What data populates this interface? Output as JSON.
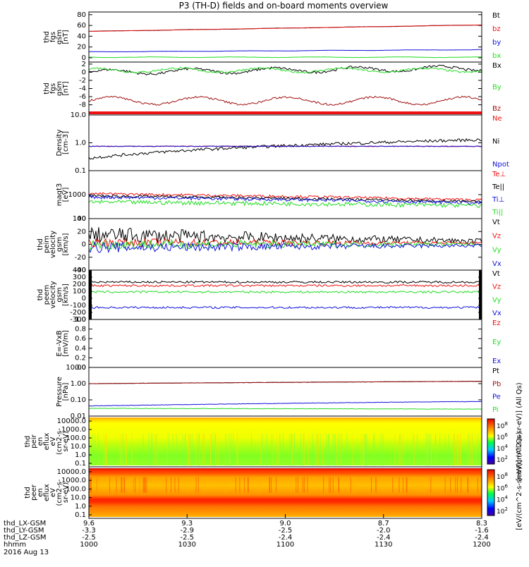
{
  "title": "P3 (TH-D) fields and on-board moments overview",
  "colors": {
    "black": "#000000",
    "red": "#ee1111",
    "green": "#22dd22",
    "blue": "#1111dd",
    "darkred": "#a01010"
  },
  "chart_data": [
    {
      "type": "line",
      "ylabel": [
        "thd",
        "fgs",
        "gsm",
        "[nT]"
      ],
      "yticks": [
        0,
        20,
        40,
        60,
        80
      ],
      "ylim": [
        -8,
        85
      ],
      "series": [
        {
          "name": "Bt",
          "color": "black",
          "from": 49,
          "to": 61
        },
        {
          "name": "bz",
          "color": "red",
          "from": 49,
          "to": 61
        },
        {
          "name": "by",
          "color": "blue",
          "from": 11,
          "to": 15
        },
        {
          "name": "bx",
          "color": "green",
          "from": 1,
          "to": 1
        }
      ]
    },
    {
      "type": "line",
      "ylabel": [
        "thd",
        "fgs",
        "gsm",
        "[nT]"
      ],
      "yticks": [
        2,
        0,
        -2,
        -4,
        -6,
        -8
      ],
      "ylim": [
        -10.5,
        2.5
      ],
      "series": [
        {
          "name": "Bx",
          "color": "black",
          "from": 0,
          "to": 1
        },
        {
          "name": "By",
          "color": "green",
          "from": 0.5,
          "to": 0.5
        },
        {
          "name": "Bz",
          "color": "darkred",
          "from": -7,
          "to": -7
        }
      ]
    },
    {
      "type": "line",
      "log": true,
      "ylabel": [
        "Density",
        "[cm-3]"
      ],
      "yticks": [
        "10.0",
        "1.0",
        "0.1"
      ],
      "ylim": [
        0.1,
        10
      ],
      "series": [
        {
          "name": "Ne",
          "color": "red",
          "from": 0.75,
          "to": 0.75
        },
        {
          "name": "Ni",
          "color": "black",
          "from": 0.28,
          "to": 1.3
        },
        {
          "name": "Npot",
          "color": "blue",
          "from": 0.75,
          "to": 0.75
        }
      ]
    },
    {
      "type": "line",
      "log": true,
      "ylabel": [
        "magt3",
        "[eV]"
      ],
      "yticks": [
        "1000",
        "100"
      ],
      "ylim": [
        100,
        10000
      ],
      "series": [
        {
          "name": "Te⊥",
          "color": "red",
          "from": 1100,
          "to": 600
        },
        {
          "name": "Te||",
          "color": "black",
          "from": 900,
          "to": 500
        },
        {
          "name": "Ti⊥",
          "color": "blue",
          "from": 800,
          "to": 450
        },
        {
          "name": "Ti||",
          "color": "green",
          "from": 500,
          "to": 350
        }
      ]
    },
    {
      "type": "line",
      "ylabel": [
        "thd",
        "peim",
        "velocity",
        "gsm",
        "[km/s]"
      ],
      "yticks": [
        40,
        20,
        0,
        -20,
        -40
      ],
      "ylim": [
        -40,
        40
      ],
      "series": [
        {
          "name": "Vt",
          "color": "black",
          "from": 15,
          "to": 5
        },
        {
          "name": "Vz",
          "color": "red",
          "from": 3,
          "to": 2
        },
        {
          "name": "Vy",
          "color": "green",
          "from": 0,
          "to": 0
        },
        {
          "name": "Vx",
          "color": "blue",
          "from": -5,
          "to": -2
        }
      ]
    },
    {
      "type": "line",
      "ylabel": [
        "thd",
        "peem",
        "velocity",
        "gsm",
        "[km/s]"
      ],
      "yticks": [
        400,
        300,
        200,
        100,
        0,
        -100,
        -200,
        -300
      ],
      "ylim": [
        -300,
        400
      ],
      "series": [
        {
          "name": "Vt",
          "color": "black",
          "from": 230,
          "to": 230
        },
        {
          "name": "Vz",
          "color": "red",
          "from": 180,
          "to": 180
        },
        {
          "name": "Vy",
          "color": "green",
          "from": 90,
          "to": 90
        },
        {
          "name": "Vx",
          "color": "blue",
          "from": -130,
          "to": -130
        }
      ]
    },
    {
      "type": "line",
      "ylabel": [
        "E=-VxB",
        "[mV/m]"
      ],
      "yticks": [
        "1.0",
        "0.8",
        "0.6",
        "0.4",
        "0.2",
        "0.0"
      ],
      "ylim": [
        0,
        1
      ],
      "series": [
        {
          "name": "Ez",
          "color": "red"
        },
        {
          "name": "Ey",
          "color": "green"
        },
        {
          "name": "Ex",
          "color": "blue"
        }
      ]
    },
    {
      "type": "line",
      "log": true,
      "ylabel": [
        "Pressure",
        "[nPa]"
      ],
      "yticks": [
        "10.00",
        "1.00",
        "0.10",
        "0.01"
      ],
      "ylim": [
        0.01,
        10
      ],
      "series": [
        {
          "name": "Pt",
          "color": "black",
          "from": 1.0,
          "to": 1.4
        },
        {
          "name": "Pb",
          "color": "darkred",
          "from": 1.0,
          "to": 1.4
        },
        {
          "name": "Pe",
          "color": "blue",
          "from": 0.042,
          "to": 0.08
        },
        {
          "name": "Pi",
          "color": "green",
          "from": 0.03,
          "to": 0.027
        }
      ]
    },
    {
      "type": "heatmap",
      "ylabel": [
        "thd",
        "peir",
        "en",
        "eflux",
        "eV",
        "(cm2-s-",
        "sr-eV)"
      ],
      "yticks": [
        "10000.0",
        "1000.0",
        "100.0",
        "10.0",
        "1.0",
        "0.1"
      ]
    },
    {
      "type": "heatmap",
      "ylabel": [
        "thd",
        "peer",
        "en",
        "eflux",
        "eV",
        "(cm2-s-",
        "sr-eV)"
      ],
      "yticks": [
        "10000.0",
        "1000.0",
        "100.0",
        "10.0",
        "1.0",
        "0.1"
      ]
    }
  ],
  "colorbar": {
    "ticks": [
      "10^8",
      "10^6",
      "10^4",
      "10^2"
    ],
    "label": "[eV/(cm^2-s-sr-eV)] (All Qs)",
    "label2": "[eV/(cm^2-s-sr-eV)] (All Qs)"
  },
  "xaxis": {
    "rows": [
      {
        "label": "thd_LX-GSM",
        "values": [
          "9.6",
          "9.3",
          "9.0",
          "8.7",
          "8.3"
        ]
      },
      {
        "label": "thd_LY-GSM",
        "values": [
          "-3.3",
          "-2.9",
          "-2.5",
          "-2.0",
          "-1.6"
        ]
      },
      {
        "label": "thd_LZ-GSM",
        "values": [
          "-2.5",
          "-2.5",
          "-2.4",
          "-2.4",
          "-2.4"
        ]
      },
      {
        "label": "hhmm",
        "values": [
          "1000",
          "1030",
          "1100",
          "1130",
          "1200"
        ]
      }
    ],
    "date": "2016 Aug 13"
  }
}
